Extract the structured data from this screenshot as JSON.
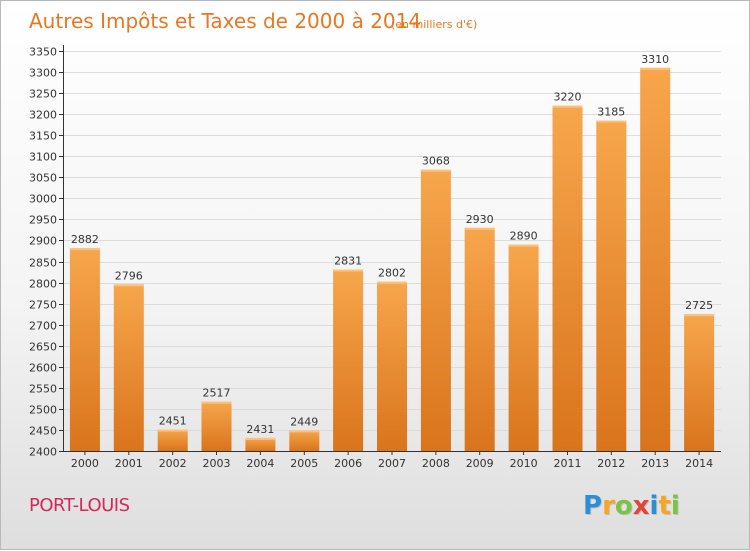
{
  "chart_data": {
    "type": "bar",
    "title": "Autres Impôts et Taxes de 2000 à 2014",
    "subtitle": "(en milliers d'€)",
    "categories": [
      "2000",
      "2001",
      "2002",
      "2003",
      "2004",
      "2005",
      "2006",
      "2007",
      "2008",
      "2009",
      "2010",
      "2011",
      "2012",
      "2013",
      "2014"
    ],
    "values": [
      2882,
      2796,
      2451,
      2517,
      2431,
      2449,
      2831,
      2802,
      3068,
      2930,
      2890,
      3220,
      3185,
      3310,
      2725
    ],
    "ylim": [
      2400,
      3350
    ],
    "ytick_step": 50,
    "grid": true,
    "bar_color_top": "#f7a64c",
    "bar_color_bottom": "#d9741c"
  },
  "footer": {
    "city": "PORT-LOUIS",
    "city_color": "#d8285a"
  },
  "logo": {
    "letters": [
      "P",
      "r",
      "o",
      "x",
      "i",
      "t",
      "i"
    ],
    "colors": [
      "#2c8ed6",
      "#f5a623",
      "#7cc243",
      "#e2453c",
      "#2c8ed6",
      "#f5a623",
      "#7cc243"
    ]
  }
}
